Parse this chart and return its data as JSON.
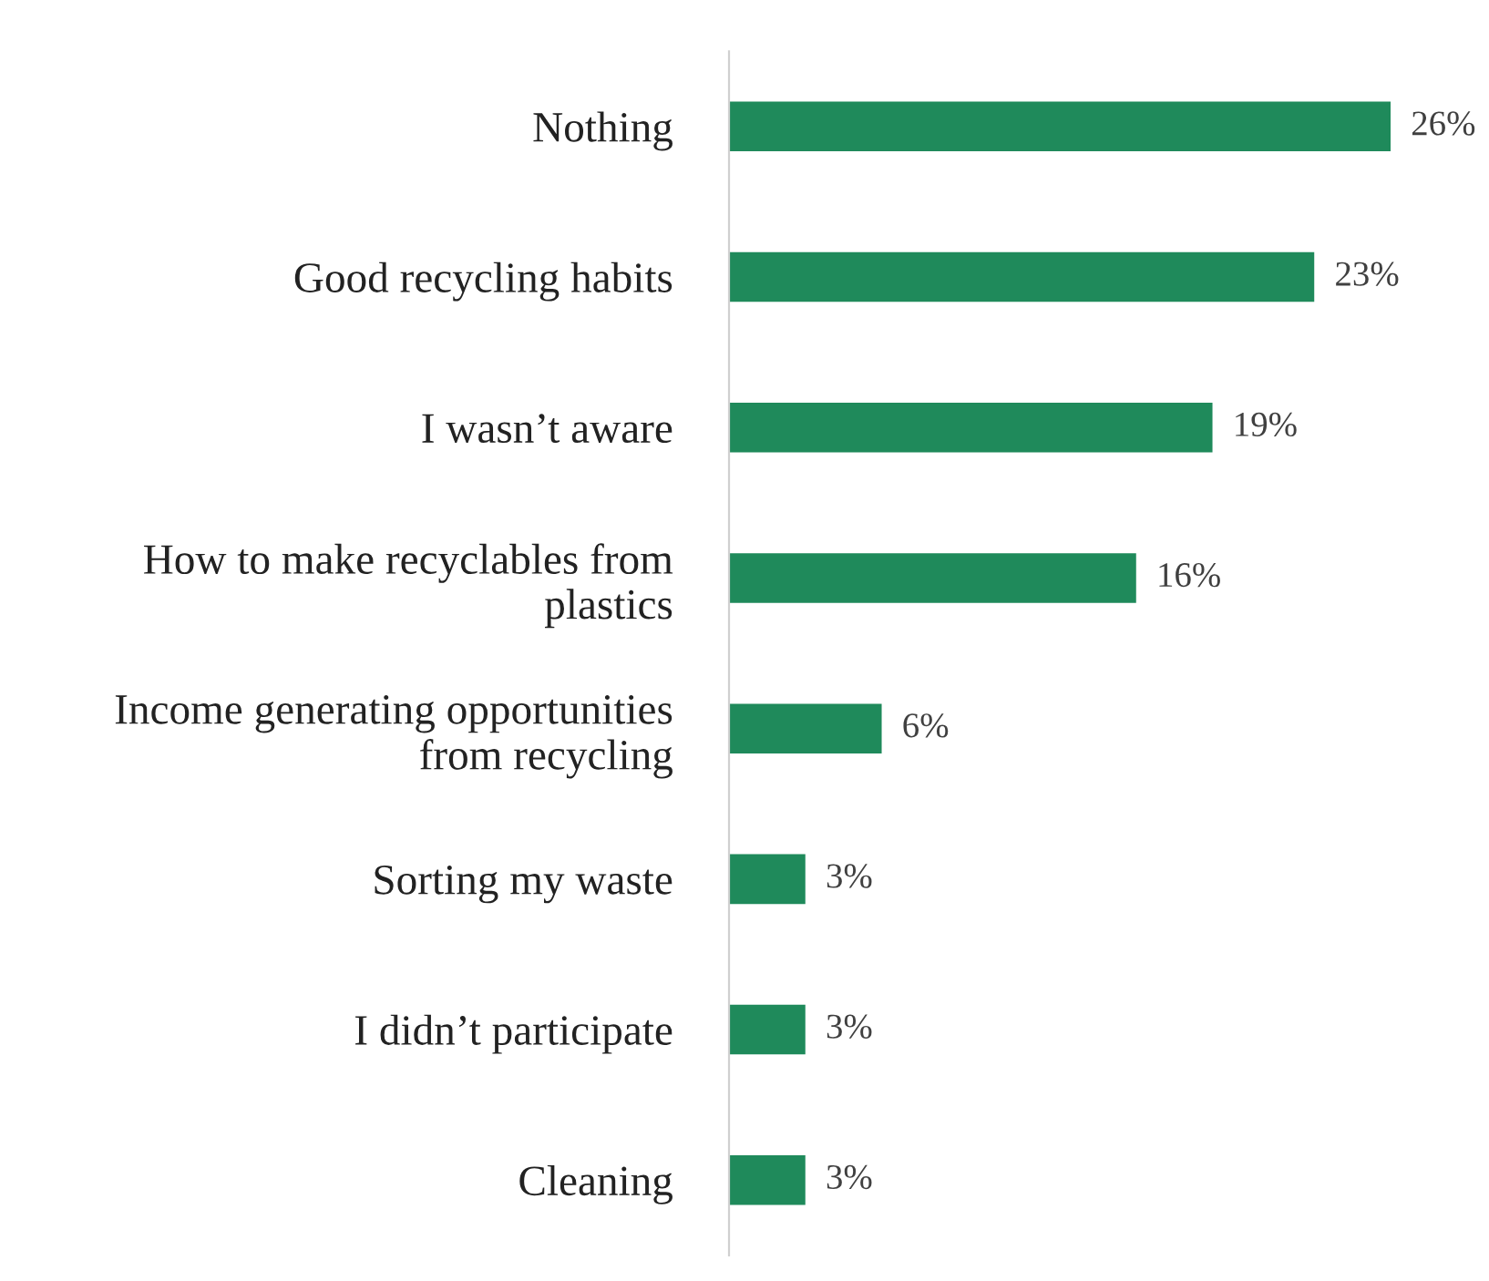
{
  "chart_data": {
    "type": "bar",
    "orientation": "horizontal",
    "categories": [
      "Nothing",
      "Good recycling habits",
      "I wasn’t aware",
      "How to make recyclables from\nplastics",
      "Income generating opportunities\nfrom recycling",
      "Sorting my waste",
      "I didn’t participate",
      "Cleaning"
    ],
    "values": [
      26,
      23,
      19,
      16,
      6,
      3,
      3,
      3
    ],
    "value_labels": [
      "26%",
      "23%",
      "19%",
      "16%",
      "6%",
      "3%",
      "3%",
      "3%"
    ],
    "color": "#1f8a5b",
    "grid": false,
    "legend": false
  }
}
